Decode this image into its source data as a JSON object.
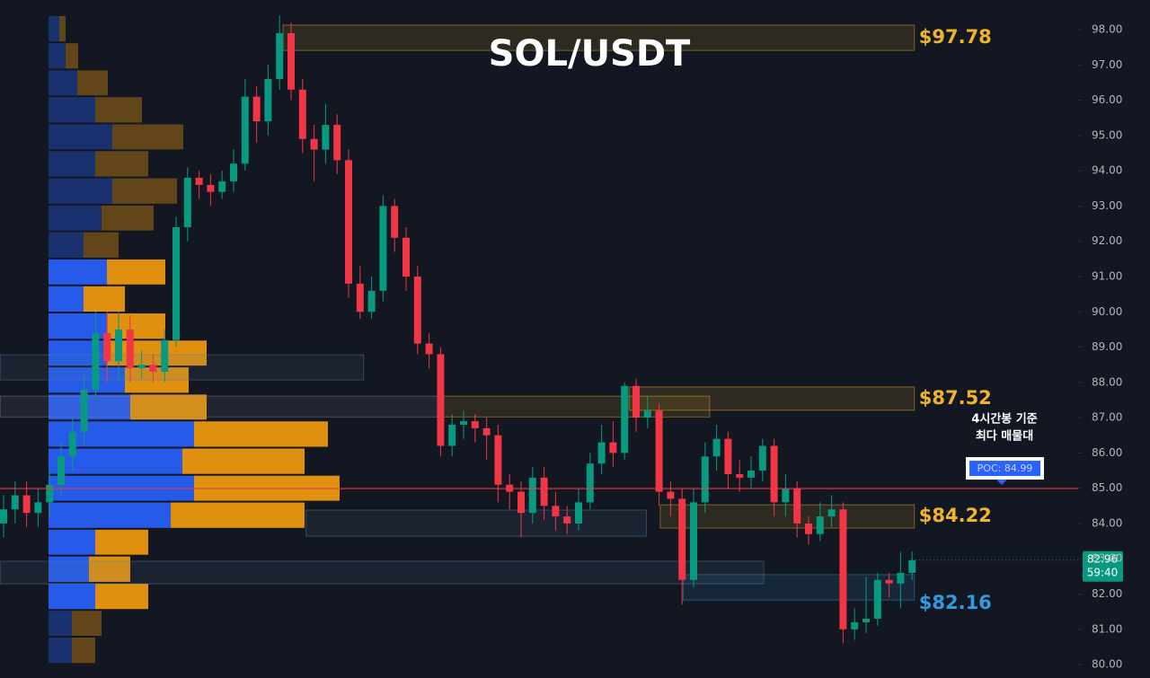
{
  "chart_data": {
    "type": "candlestick",
    "title": "SOL/USDT",
    "up_color": "#089981",
    "down_color": "#f23645",
    "open": [
      84.0,
      84.4,
      84.8,
      84.3,
      84.6,
      85.1,
      85.9,
      86.6,
      87.8,
      89.4,
      88.6,
      89.5,
      88.4,
      88.5,
      88.3,
      89.2,
      92.4,
      93.8,
      93.6,
      93.4,
      93.7,
      94.2,
      96.1,
      95.4,
      96.6,
      97.9,
      96.3,
      94.9,
      94.6,
      95.3,
      94.3,
      90.8,
      90.0,
      90.6,
      93.0,
      92.1,
      91.0,
      89.1,
      88.8,
      86.2,
      86.8,
      86.9,
      86.7,
      86.5,
      85.1,
      84.9,
      84.3,
      85.3,
      84.5,
      84.2,
      84.0,
      84.6,
      85.7,
      86.3,
      86.0,
      87.9,
      87.0,
      87.2,
      84.9,
      84.7,
      82.4,
      84.6,
      85.9,
      86.4,
      85.4,
      85.3,
      85.5,
      86.2,
      84.6,
      85.0,
      84.0,
      83.7,
      84.2,
      84.4,
      81.0,
      81.2,
      81.3,
      82.4,
      82.3,
      82.6
    ],
    "high": [
      84.8,
      85.2,
      85.2,
      85.0,
      85.5,
      86.3,
      87.0,
      88.2,
      90.0,
      90.0,
      90.0,
      89.9,
      88.9,
      88.8,
      89.5,
      92.7,
      94.1,
      94.0,
      93.9,
      94.0,
      94.6,
      96.6,
      96.4,
      97.0,
      98.4,
      98.2,
      96.6,
      95.3,
      95.9,
      95.6,
      94.6,
      91.3,
      91.0,
      93.3,
      93.2,
      92.4,
      91.3,
      89.4,
      89.0,
      87.1,
      87.2,
      87.1,
      87.0,
      86.8,
      85.4,
      85.2,
      85.6,
      85.6,
      84.9,
      84.5,
      85.0,
      86.0,
      86.8,
      86.9,
      88.0,
      88.1,
      87.6,
      87.4,
      85.2,
      85.0,
      85.0,
      86.3,
      86.8,
      86.6,
      85.8,
      85.9,
      86.4,
      86.4,
      85.4,
      85.2,
      84.2,
      84.6,
      84.8,
      84.6,
      81.6,
      82.5,
      82.6,
      82.6,
      83.2,
      83.2
    ],
    "low": [
      83.6,
      84.0,
      83.9,
      83.9,
      84.2,
      84.8,
      85.5,
      86.2,
      87.5,
      88.0,
      88.0,
      88.0,
      88.1,
      88.0,
      88.0,
      89.0,
      92.0,
      93.2,
      93.0,
      93.2,
      93.4,
      94.0,
      94.8,
      95.0,
      96.3,
      96.0,
      94.5,
      93.7,
      94.2,
      93.9,
      90.4,
      89.8,
      89.8,
      90.3,
      91.7,
      90.6,
      88.8,
      88.4,
      85.9,
      85.9,
      86.4,
      86.3,
      85.8,
      84.6,
      84.4,
      83.6,
      84.0,
      84.1,
      83.8,
      83.7,
      83.8,
      84.4,
      85.4,
      85.6,
      85.8,
      86.6,
      86.7,
      84.5,
      84.2,
      81.7,
      82.2,
      84.3,
      85.5,
      85.0,
      84.9,
      85.0,
      85.2,
      84.2,
      84.2,
      83.6,
      83.4,
      83.5,
      83.9,
      80.6,
      80.7,
      80.9,
      81.1,
      81.9,
      81.6,
      82.4
    ],
    "close": [
      84.4,
      84.8,
      84.3,
      84.6,
      85.1,
      85.9,
      86.6,
      87.8,
      89.4,
      88.6,
      89.5,
      88.4,
      88.5,
      88.3,
      89.2,
      92.4,
      93.8,
      93.6,
      93.4,
      93.7,
      94.2,
      96.1,
      95.4,
      96.6,
      97.9,
      96.3,
      94.9,
      94.6,
      95.3,
      94.3,
      90.8,
      90.0,
      90.6,
      93.0,
      92.1,
      91.0,
      89.1,
      88.8,
      86.2,
      86.8,
      86.9,
      86.7,
      86.5,
      85.1,
      84.9,
      84.3,
      85.3,
      84.5,
      84.2,
      84.0,
      84.6,
      85.7,
      86.3,
      86.0,
      87.9,
      87.0,
      87.2,
      84.9,
      84.7,
      82.4,
      84.6,
      85.9,
      86.4,
      85.4,
      85.3,
      85.5,
      86.2,
      84.6,
      85.0,
      84.0,
      83.7,
      84.2,
      84.4,
      81.0,
      81.2,
      81.3,
      82.4,
      82.3,
      82.6,
      82.96
    ],
    "ylim": [
      79.62,
      98.84
    ],
    "yticks": [
      {
        "value": 80,
        "label": "80.00"
      },
      {
        "value": 81,
        "label": "81.00"
      },
      {
        "value": 82,
        "label": "82.00"
      },
      {
        "value": 83,
        "label": "83.00"
      },
      {
        "value": 84,
        "label": "84.00"
      },
      {
        "value": 85,
        "label": "85.00"
      },
      {
        "value": 86,
        "label": "86.00"
      },
      {
        "value": 87,
        "label": "87.00"
      },
      {
        "value": 88,
        "label": "88.00"
      },
      {
        "value": 89,
        "label": "89.00"
      },
      {
        "value": 90,
        "label": "90.00"
      },
      {
        "value": 91,
        "label": "91.00"
      },
      {
        "value": 92,
        "label": "92.00"
      },
      {
        "value": 93,
        "label": "93.00"
      },
      {
        "value": 94,
        "label": "94.00"
      },
      {
        "value": 95,
        "label": "95.00"
      },
      {
        "value": 96,
        "label": "96.00"
      },
      {
        "value": 97,
        "label": "97.00"
      },
      {
        "value": 98,
        "label": "98.00"
      }
    ],
    "profile": {
      "bins": [
        98.41,
        97.64,
        96.87,
        96.11,
        95.34,
        94.58,
        93.81,
        93.04,
        92.28,
        91.51,
        90.75,
        89.98,
        89.21,
        88.45,
        87.68,
        86.92,
        86.15,
        85.38,
        84.62,
        83.85,
        83.09,
        82.32,
        81.55,
        80.79,
        80.02
      ],
      "buy": [
        12,
        19,
        32,
        52,
        71,
        52,
        71,
        59,
        39,
        65,
        39,
        65,
        65,
        85,
        91,
        162,
        149,
        162,
        136,
        52,
        45,
        52,
        26,
        26
      ],
      "sell": [
        7,
        14,
        34,
        52,
        79,
        59,
        72,
        58,
        39,
        65,
        46,
        65,
        111,
        71,
        85,
        149,
        136,
        162,
        149,
        59,
        46,
        59,
        33,
        26
      ],
      "buy_color": "#2962ff",
      "sell_color": "#f59d0c",
      "value_area_rows": [
        9,
        21
      ]
    },
    "zones": [
      {
        "low": 97.41,
        "high": 98.13,
        "from": 24.3,
        "to": 79.2,
        "color": "#f0b429",
        "label": "$97.78"
      },
      {
        "low": 87.21,
        "high": 87.87,
        "from": 54.4,
        "to": 79.2,
        "color": "#f0b429",
        "label": "$87.52"
      },
      {
        "low": 87.02,
        "high": 87.61,
        "from": 38,
        "to": 61.4,
        "color": "#f0b429"
      },
      {
        "low": 83.87,
        "high": 84.53,
        "from": 57.1,
        "to": 79.2,
        "color": "#f0b429",
        "label": "$84.22"
      },
      {
        "low": 81.83,
        "high": 82.55,
        "from": 59.1,
        "to": 79.2,
        "color": "#2f9be0",
        "label": "$82.16"
      },
      {
        "low": 82.29,
        "high": 82.93,
        "from": -0.3,
        "to": 66.1,
        "color": "#5d7fa8"
      },
      {
        "low": 88.07,
        "high": 88.78,
        "from": -0.3,
        "to": 31.3,
        "color": "#5d7fa8"
      },
      {
        "low": 87.02,
        "high": 87.61,
        "from": -0.3,
        "to": 38,
        "color": "#8a8f9c"
      },
      {
        "low": 83.64,
        "high": 84.38,
        "from": 26.3,
        "to": 55.9,
        "color": "#5d7fa8"
      }
    ],
    "poc": {
      "value": 84.99,
      "label": "POC: 84.99",
      "note": [
        "4시간봉 기준",
        "최다 매물대"
      ]
    },
    "last_price": 82.96,
    "countdown": "59:40"
  }
}
